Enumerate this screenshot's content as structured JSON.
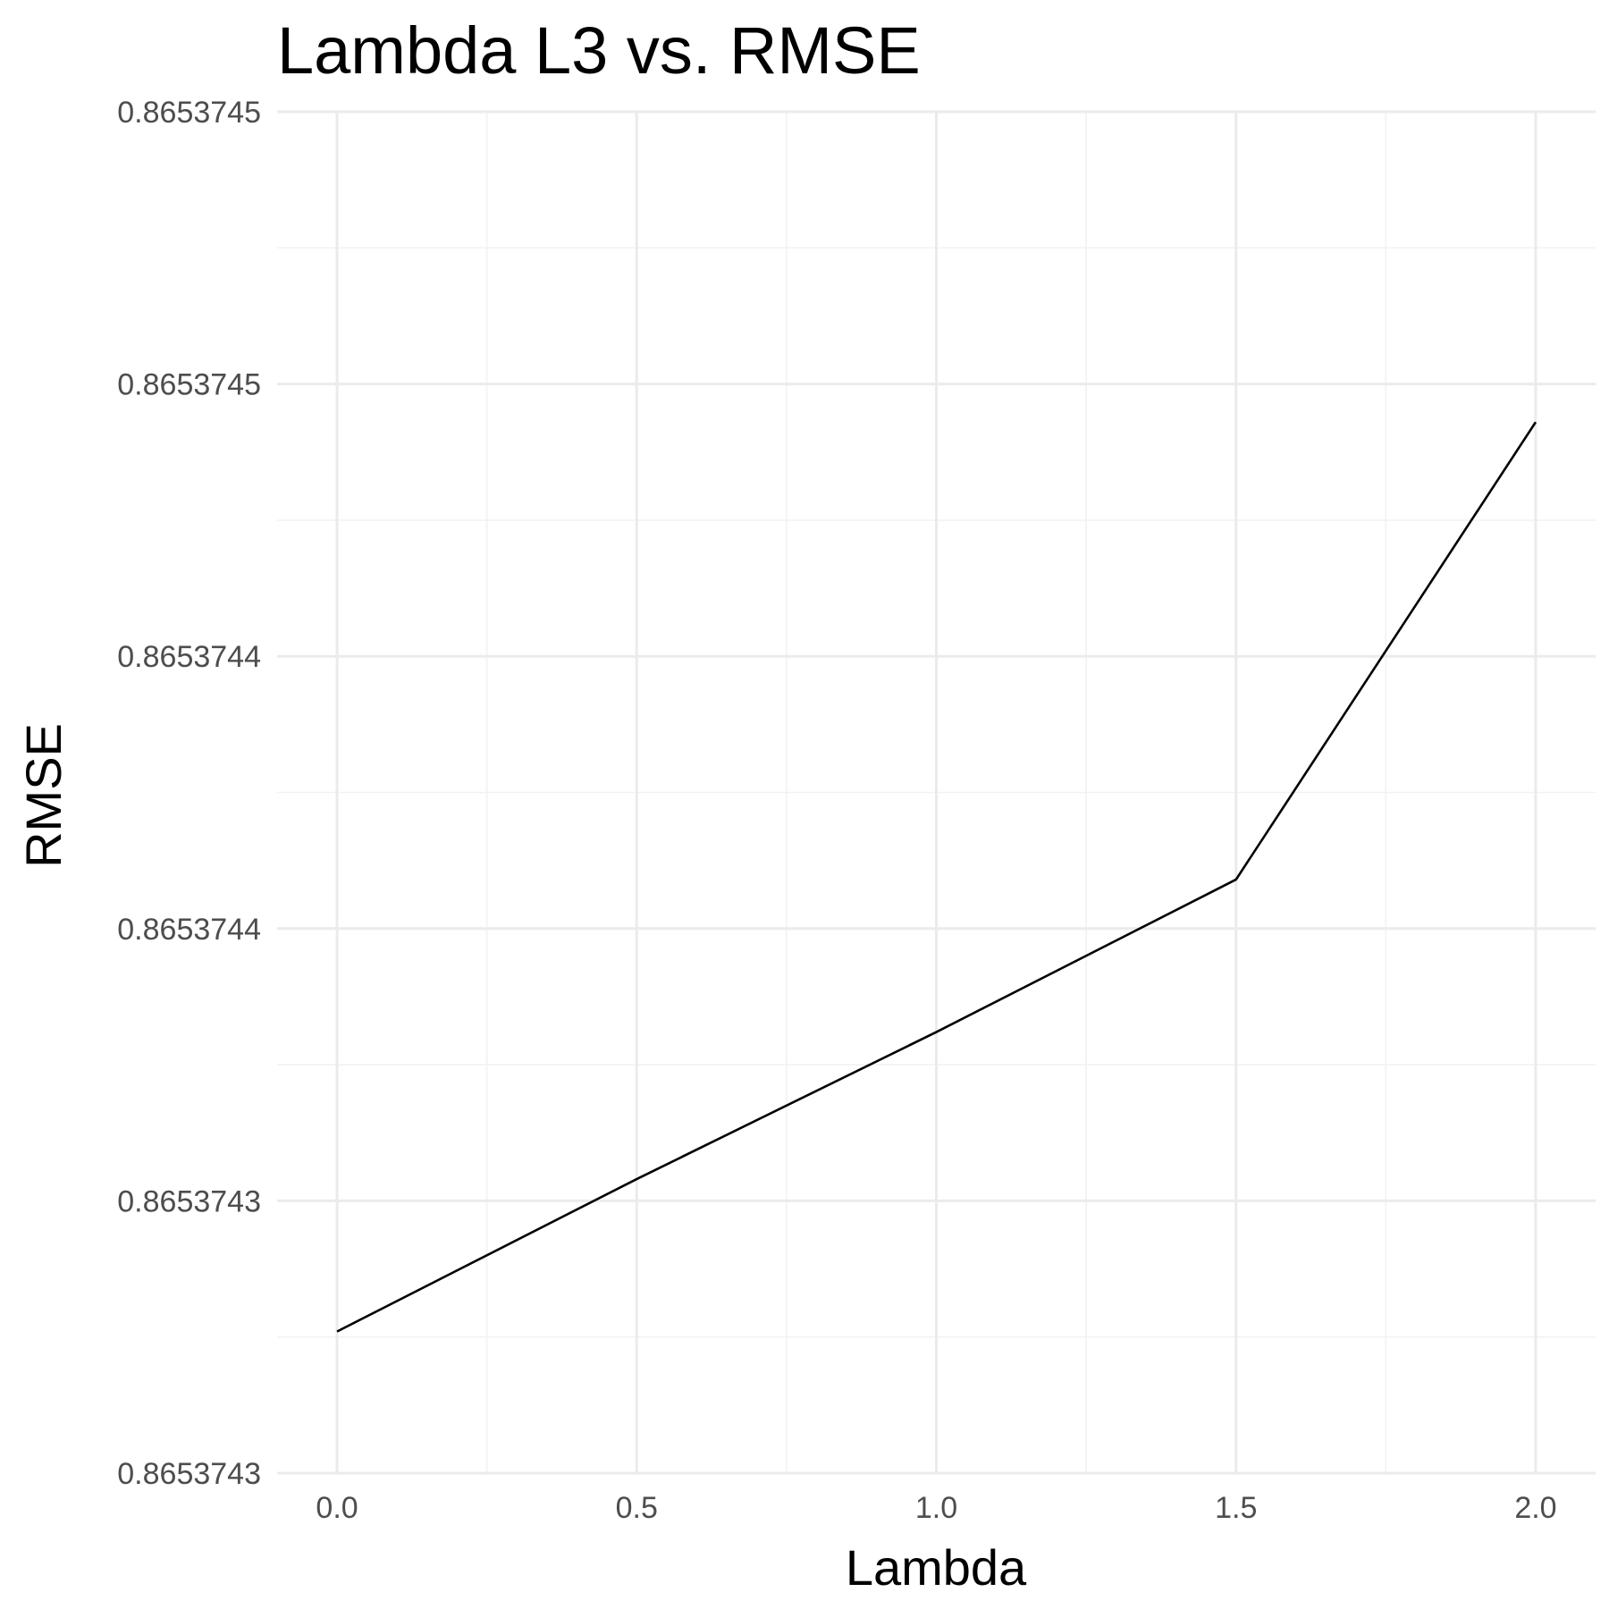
{
  "chart_data": {
    "type": "line",
    "title": "Lambda L3 vs. RMSE",
    "xlabel": "Lambda",
    "ylabel": "RMSE",
    "xlim": [
      -0.1,
      2.1
    ],
    "ylim": [
      0.86537425,
      0.8653745
    ],
    "x_ticks": [
      {
        "value": 0.0,
        "label": "0.0"
      },
      {
        "value": 0.5,
        "label": "0.5"
      },
      {
        "value": 1.0,
        "label": "1.0"
      },
      {
        "value": 1.5,
        "label": "1.5"
      },
      {
        "value": 2.0,
        "label": "2.0"
      }
    ],
    "y_ticks": [
      {
        "value": 0.86537425,
        "label": "0.8653743"
      },
      {
        "value": 0.8653743,
        "label": "0.8653743"
      },
      {
        "value": 0.86537435,
        "label": "0.8653744"
      },
      {
        "value": 0.8653744,
        "label": "0.8653744"
      },
      {
        "value": 0.86537445,
        "label": "0.8653745"
      },
      {
        "value": 0.8653745,
        "label": "0.8653745"
      }
    ],
    "grid": true,
    "series": [
      {
        "x": [
          0.0,
          0.5,
          1.0,
          1.5,
          2.0
        ],
        "y": [
          0.865374276,
          0.865374304,
          0.865374331,
          0.865374359,
          0.865374443
        ]
      }
    ]
  }
}
